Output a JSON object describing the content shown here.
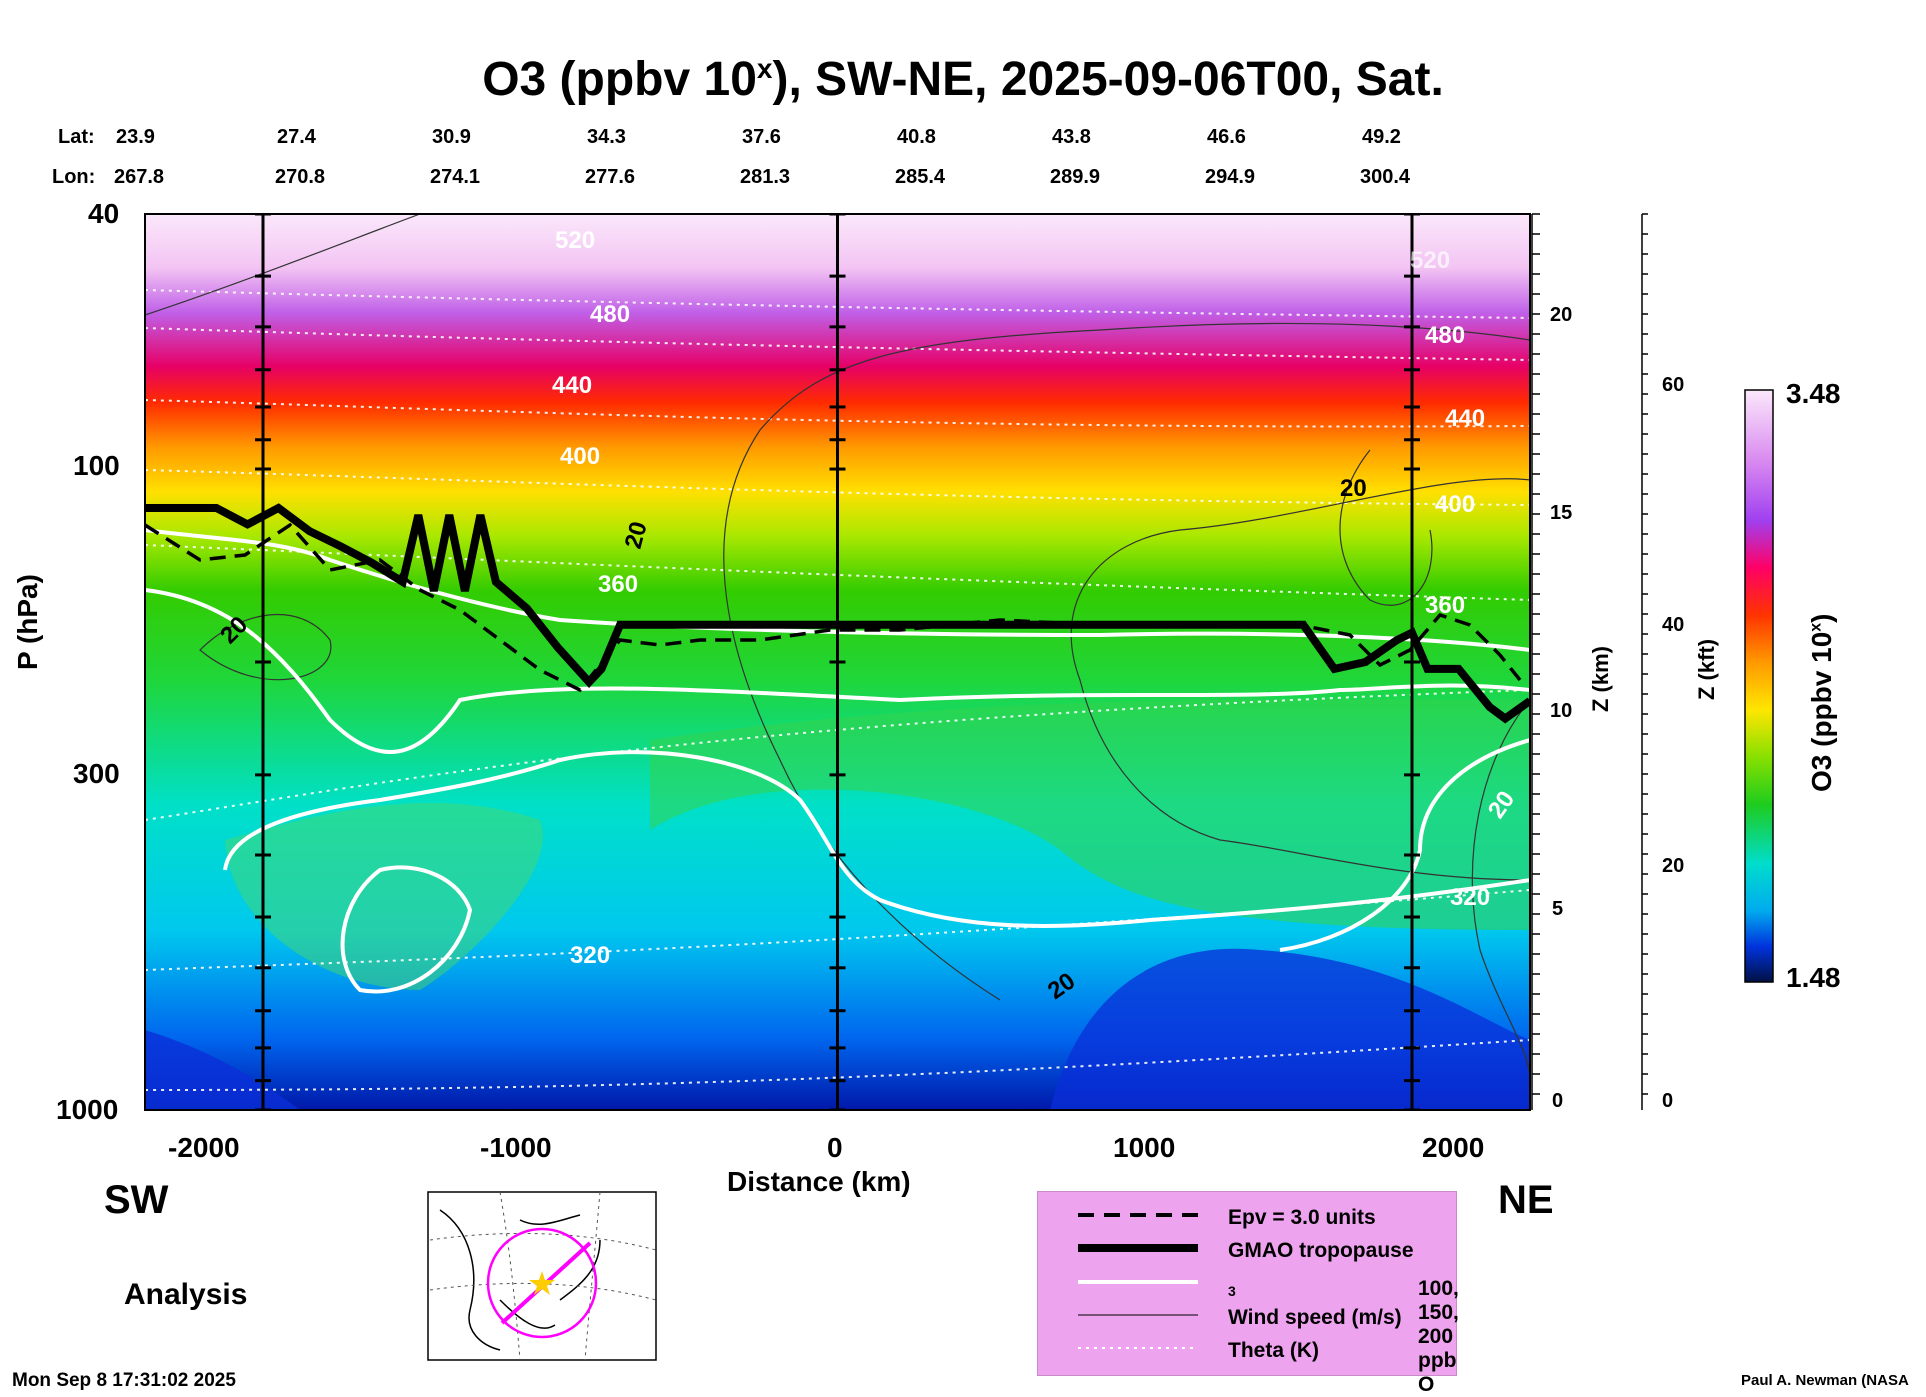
{
  "title_main": "O3 (ppbv 10",
  "title_sup": "x",
  "title_rest": "), SW-NE, 2025-09-06T00, Sat.",
  "lat_label": "Lat:",
  "lon_label": "Lon:",
  "lat_values": [
    "23.9",
    "27.4",
    "30.9",
    "34.3",
    "37.6",
    "40.8",
    "43.8",
    "46.6",
    "49.2"
  ],
  "lon_values": [
    "267.8",
    "270.8",
    "274.1",
    "277.6",
    "281.3",
    "285.4",
    "289.9",
    "294.9",
    "300.4"
  ],
  "p_axis_label": "P (hPa)",
  "p_ticks": [
    "40",
    "100",
    "300",
    "1000"
  ],
  "x_axis_label": "Distance (km)",
  "x_ticks": [
    "-2000",
    "-1000",
    "0",
    "1000",
    "2000"
  ],
  "z_km_label": "Z (km)",
  "z_km_ticks": [
    "20",
    "15",
    "10",
    "5",
    "0"
  ],
  "z_kft_label": "Z (kft)",
  "z_kft_ticks": [
    "60",
    "40",
    "20",
    "0"
  ],
  "colorbar_label": "O3 (ppbv 10",
  "colorbar_label_sup": "x",
  "colorbar_label_end": ")",
  "colorbar_max": "3.48",
  "colorbar_min": "1.48",
  "sw_label": "SW",
  "ne_label": "NE",
  "analysis_label": "Analysis",
  "timestamp": "Mon Sep  8 17:31:02 2025",
  "credit": "Paul A. Newman (NASA",
  "legend": {
    "epv": "Epv = 3.0 units",
    "trop": "GMAO tropopause",
    "o3_a": "100, 150, 200 ppb O",
    "o3_sub": "3",
    "wind": "Wind speed (m/s)",
    "theta": "Theta (K)"
  },
  "theta_labels": [
    "520",
    "480",
    "440",
    "400",
    "360",
    "320",
    "480",
    "440",
    "400",
    "360",
    "320",
    "520"
  ],
  "wind_labels": [
    "20",
    "20",
    "20",
    "20",
    "20"
  ],
  "colors": {
    "tropopause": "#000000",
    "ozone_contour": "#ffffff",
    "theta": "#ffffff",
    "legend_bg": "#eea3ee",
    "track": "#ff00ff",
    "star": "#ffcc00"
  },
  "chart_data": {
    "type": "heatmap",
    "title": "O3 (ppbv 10^x), SW-NE, 2025-09-06T00, Sat.",
    "xlabel": "Distance (km)",
    "ylabel": "P (hPa)",
    "xlim": [
      -2230,
      2230
    ],
    "ylim": [
      1000,
      40
    ],
    "y_scale": "log",
    "colorbar": {
      "min": 1.48,
      "max": 3.48,
      "label": "O3 (ppbv 10^x)"
    },
    "theta_contours_K": [
      320,
      360,
      400,
      440,
      480,
      520
    ],
    "wind_contour_ms": [
      20
    ],
    "ozone_contours_ppb": [
      100,
      150,
      200
    ],
    "tropopause_hPa": {
      "x": [
        -2230,
        -2000,
        -1900,
        -1800,
        -1700,
        -1600,
        -1500,
        -1400,
        -1350,
        -1300,
        -1250,
        -1200,
        -1150,
        -1100,
        -1000,
        -900,
        -800,
        -760,
        -700,
        -600,
        -400,
        0,
        400,
        800,
        1200,
        1400,
        1500,
        1600,
        1700,
        1800,
        1850,
        1900,
        2000,
        2100,
        2150,
        2230
      ],
      "p": [
        115,
        115,
        122,
        115,
        125,
        132,
        140,
        150,
        118,
        155,
        118,
        155,
        118,
        150,
        165,
        190,
        215,
        205,
        175,
        175,
        175,
        175,
        175,
        175,
        175,
        175,
        175,
        205,
        200,
        185,
        180,
        205,
        205,
        235,
        245,
        230
      ]
    },
    "vertical_lines_km": [
      -1850,
      0,
      1850
    ]
  }
}
